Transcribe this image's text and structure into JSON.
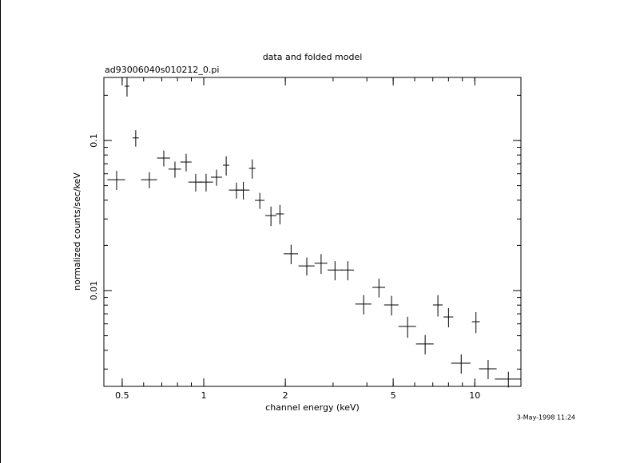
{
  "chart_data": {
    "type": "errorbar",
    "title": "data and folded model",
    "subtitle": "ad93006040s010212_0.pi",
    "x_label": "channel energy (keV)",
    "y_label": "normalized counts/sec/keV",
    "timestamp": "3-May-1998 11:24",
    "x_log": true,
    "y_log": true,
    "color": "#000000",
    "xlim": [
      0.428,
      14.8
    ],
    "ylim": [
      0.0023,
      0.263
    ],
    "xticks": [
      0.5,
      1,
      2,
      5,
      10
    ],
    "yticks": [
      0.01,
      0.1
    ],
    "x": [
      0.477,
      0.521,
      0.561,
      0.63,
      0.712,
      0.783,
      0.861,
      0.934,
      1.02,
      1.115,
      1.21,
      1.32,
      1.4,
      1.51,
      1.61,
      1.77,
      1.91,
      2.1,
      2.4,
      2.71,
      3.05,
      3.4,
      3.89,
      4.43,
      4.93,
      5.65,
      6.56,
      7.31,
      8.0,
      8.91,
      10.1,
      11.2,
      13.3
    ],
    "xerr": [
      0.036,
      0.011,
      0.015,
      0.043,
      0.039,
      0.042,
      0.041,
      0.057,
      0.062,
      0.053,
      0.033,
      0.081,
      0.075,
      0.041,
      0.066,
      0.084,
      0.065,
      0.128,
      0.163,
      0.147,
      0.186,
      0.184,
      0.264,
      0.24,
      0.3,
      0.42,
      0.49,
      0.3,
      0.33,
      0.73,
      0.34,
      0.84,
      1.45
    ],
    "values": [
      0.0548,
      0.23,
      0.104,
      0.0548,
      0.0764,
      0.0644,
      0.0718,
      0.0528,
      0.0528,
      0.0569,
      0.0684,
      0.0467,
      0.0467,
      0.0652,
      0.0399,
      0.0316,
      0.0324,
      0.0176,
      0.0146,
      0.0152,
      0.0137,
      0.0137,
      0.00813,
      0.0105,
      0.00802,
      0.00577,
      0.00441,
      0.00802,
      0.00667,
      0.00328,
      0.0062,
      0.00301,
      0.00257
    ],
    "yerr": [
      0.008,
      0.034,
      0.013,
      0.0067,
      0.0093,
      0.0079,
      0.0096,
      0.0071,
      0.0071,
      0.007,
      0.01,
      0.0057,
      0.0063,
      0.0096,
      0.0049,
      0.0047,
      0.0048,
      0.0026,
      0.002,
      0.0023,
      0.002,
      0.002,
      0.0012,
      0.0015,
      0.0012,
      0.00092,
      0.00065,
      0.0013,
      0.00098,
      0.00048,
      0.00099,
      0.00044,
      0.00031
    ]
  }
}
